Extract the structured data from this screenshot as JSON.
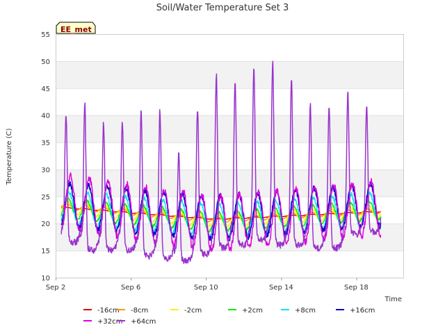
{
  "chart_data": {
    "type": "line",
    "title": "Soil/Water Temperature Set 3",
    "xlabel": "Time",
    "ylabel": "Temperature (C)",
    "ylim": [
      10,
      55
    ],
    "yticks": [
      10,
      15,
      20,
      25,
      30,
      35,
      40,
      45,
      50,
      55
    ],
    "xlim_days": [
      0,
      18.5
    ],
    "xtick_days": [
      0,
      4,
      8,
      12,
      16
    ],
    "xtick_labels": [
      "Sep 2",
      "Sep 6",
      "Sep 10",
      "Sep 14",
      "Sep 18"
    ],
    "badge": "EE_met",
    "grid": true,
    "legend_position": "bottom",
    "time_range_days": [
      0.3,
      17.3
    ],
    "series": [
      {
        "name": "-16cm",
        "color": "#dd0000",
        "mean_start": 23.0,
        "mean_mid": 20.8,
        "mean_end": 22.2,
        "mid_day": 8.5,
        "amplitude": 0.1
      },
      {
        "name": "-8cm",
        "color": "#ff9900",
        "mean_start": 23.2,
        "mean_mid": 20.7,
        "mean_end": 22.3,
        "mid_day": 8.5,
        "amplitude": 0.5
      },
      {
        "name": "-2cm",
        "color": "#ffee00",
        "mean_start": 23.0,
        "mean_mid": 20.5,
        "mean_end": 22.3,
        "mid_day": 8.5,
        "amplitude": 1.2
      },
      {
        "name": "+2cm",
        "color": "#00ee00",
        "mean_start": 22.8,
        "mean_mid": 20.3,
        "mean_end": 22.5,
        "mid_day": 8.5,
        "amplitude": 1.8
      },
      {
        "name": "+8cm",
        "color": "#00e5ee",
        "mean_start": 23.0,
        "mean_mid": 20.5,
        "mean_end": 22.8,
        "mid_day": 8.5,
        "amplitude": 3.0
      },
      {
        "name": "+16cm",
        "color": "#0000cc",
        "mean_start": 23.5,
        "mean_mid": 21.0,
        "mean_end": 23.5,
        "mid_day": 8.5,
        "amplitude": 4.0
      },
      {
        "name": "+32cm",
        "color": "#dd00dd",
        "mean_start": 24.0,
        "mean_mid": 20.0,
        "mean_end": 23.0,
        "mid_day": 8.5,
        "amplitude": 5.0
      },
      {
        "name": "+64cm",
        "color": "#9933cc",
        "daily_max": [
          40.5,
          42.3,
          38.5,
          38.8,
          41.0,
          40.8,
          33.0,
          41.5,
          47.5,
          46.5,
          49.0,
          50.0,
          46.5,
          42.0,
          42.0,
          44.0,
          41.5
        ],
        "daily_min": [
          16.5,
          15.0,
          15.0,
          15.0,
          14.0,
          13.5,
          13.0,
          14.3,
          15.5,
          16.0,
          17.0,
          16.0,
          16.0,
          15.5,
          15.5,
          18.0,
          18.5
        ]
      }
    ]
  }
}
